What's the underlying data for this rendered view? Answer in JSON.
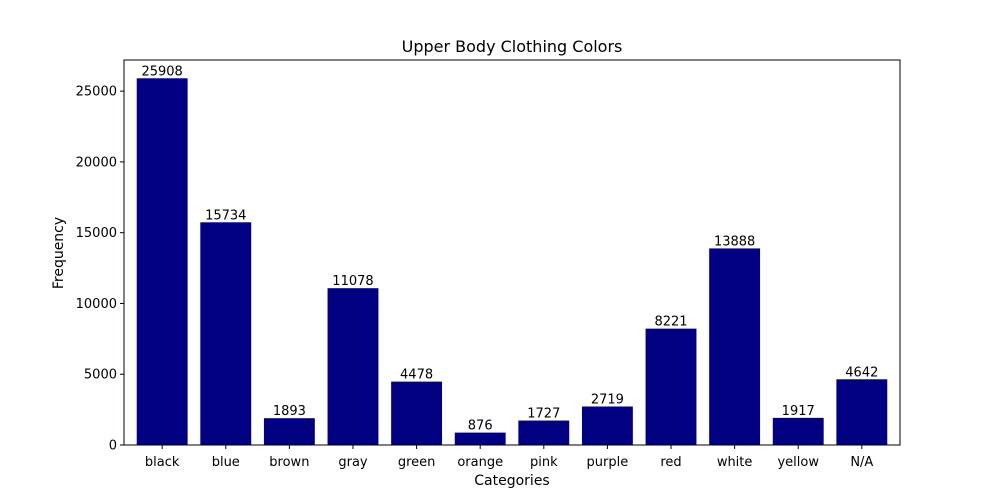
{
  "chart_data": {
    "type": "bar",
    "title": "Upper Body Clothing Colors",
    "xlabel": "Categories",
    "ylabel": "Frequency",
    "categories": [
      "black",
      "blue",
      "brown",
      "gray",
      "green",
      "orange",
      "pink",
      "purple",
      "red",
      "white",
      "yellow",
      "N/A"
    ],
    "values": [
      25908,
      15734,
      1893,
      11078,
      4478,
      876,
      1727,
      2719,
      8221,
      13888,
      1917,
      4642
    ],
    "ylim": [
      0,
      27200
    ],
    "yticks": [
      0,
      5000,
      10000,
      15000,
      20000,
      25000
    ],
    "bar_color": "#000080",
    "grid": false,
    "legend": "none",
    "data_labels": true
  }
}
